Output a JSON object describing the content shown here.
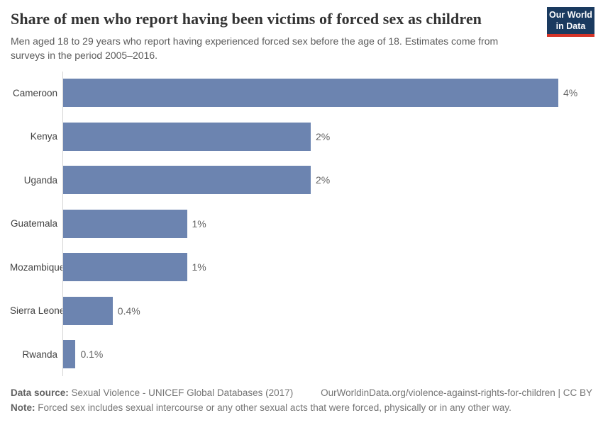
{
  "header": {
    "title": "Share of men who report having been victims of forced sex as children",
    "subtitle": "Men aged 18 to 29 years who report having experienced forced sex before the age of 18. Estimates come from surveys in the period 2005–2016.",
    "logo": {
      "line1": "Our World",
      "line2": "in Data",
      "bg_color": "#1a3a5f",
      "accent_color": "#d53327"
    }
  },
  "chart_data": {
    "type": "bar",
    "orientation": "horizontal",
    "title": "Share of men who report having been victims of forced sex as children",
    "categories": [
      "Cameroon",
      "Kenya",
      "Uganda",
      "Guatemala",
      "Mozambique",
      "Sierra Leone",
      "Rwanda"
    ],
    "values": [
      4,
      2,
      2,
      1,
      1,
      0.4,
      0.1
    ],
    "value_labels": [
      "4%",
      "2%",
      "2%",
      "1%",
      "1%",
      "0.4%",
      "0.1%"
    ],
    "xlim": [
      0,
      4
    ],
    "xlabel": "",
    "ylabel": "",
    "grid": false,
    "legend": false,
    "bar_color": "#6c84b0",
    "axis_line_color": "#d4d4d4"
  },
  "footer": {
    "datasource_label": "Data source:",
    "datasource_text": " Sexual Violence - UNICEF Global Databases (2017)",
    "link": "OurWorldinData.org/violence-against-rights-for-children | CC BY",
    "note_label": "Note:",
    "note_text": " Forced sex includes sexual intercourse or any other sexual acts that were forced, physically or in any other way."
  }
}
